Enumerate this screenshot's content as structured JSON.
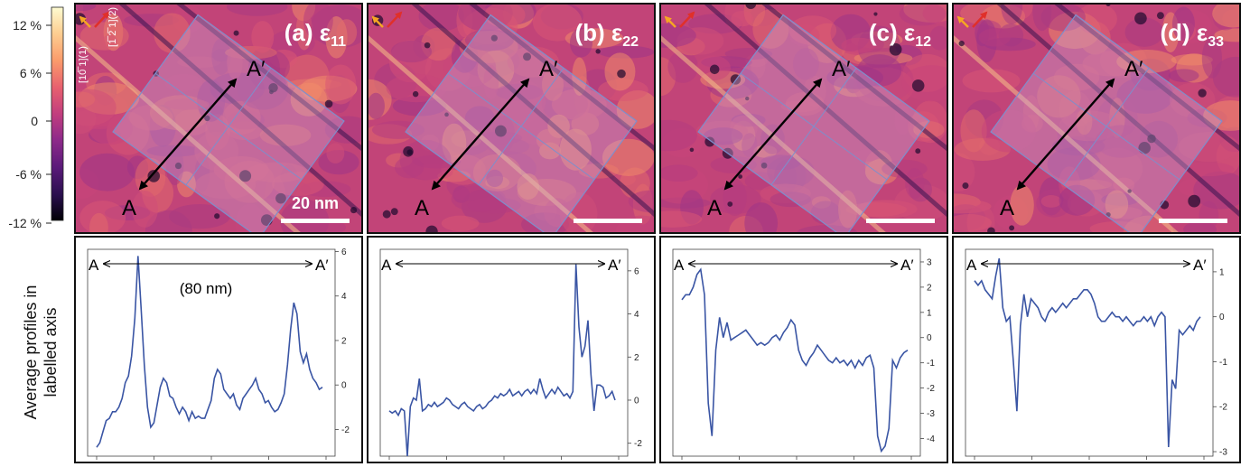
{
  "colorbar": {
    "ticks": [
      "12 %",
      "6 %",
      "0",
      "-6 %",
      "-12 %"
    ],
    "colors": [
      "#fdfbd1",
      "#fdcf92",
      "#fb9b6b",
      "#e75f6f",
      "#c23e7e",
      "#8f2a8a",
      "#5b1a7a",
      "#2a0f4e",
      "#000004"
    ]
  },
  "panels": [
    {
      "title_prefix": "(a) ",
      "symbol": "ε",
      "subscript": "11"
    },
    {
      "title_prefix": "(b) ",
      "symbol": "ε",
      "subscript": "22"
    },
    {
      "title_prefix": "(c) ",
      "symbol": "ε",
      "subscript": "12"
    },
    {
      "title_prefix": "(d) ",
      "symbol": "ε",
      "subscript": "33"
    }
  ],
  "map_labels": {
    "start": "A",
    "end": "A′"
  },
  "scale_bar_label": "20 nm",
  "direction_labels": {
    "d1": "[10̅ 1](1)",
    "d2": "[1̅ 2̅ 1](2)"
  },
  "ylabel_lines": [
    "Average profiles in",
    "labelled axis"
  ],
  "profile_length_label": "(80 nm)",
  "arrow_labels": {
    "start": "A",
    "end": "A′"
  },
  "colors": {
    "line": "#3a55a4",
    "orange_arrow": "#f5a623",
    "red_arrow": "#e0302a"
  },
  "chart_data": [
    {
      "type": "line",
      "ylim": [
        -3.2,
        6.1
      ],
      "yticks": [
        -2,
        0,
        2,
        4,
        6
      ],
      "series": [
        {
          "values": [
            -2.8,
            -2.6,
            -2.1,
            -1.6,
            -1.5,
            -1.2,
            -1.2,
            -1.0,
            -0.6,
            0.1,
            0.4,
            1.3,
            3.0,
            5.8,
            3.4,
            0.9,
            -1.0,
            -1.9,
            -1.7,
            -0.9,
            -0.1,
            0.3,
            0.1,
            -0.5,
            -0.6,
            -1.0,
            -1.3,
            -1.0,
            -1.2,
            -1.6,
            -1.2,
            -1.5,
            -1.4,
            -1.5,
            -1.5,
            -1.1,
            -0.7,
            0.3,
            0.7,
            0.5,
            -0.2,
            -0.4,
            -0.6,
            -0.4,
            -0.9,
            -1.1,
            -0.6,
            -0.4,
            -0.2,
            0.0,
            0.3,
            -0.2,
            -0.4,
            -0.8,
            -0.7,
            -1.0,
            -1.2,
            -1.1,
            -0.8,
            -0.4,
            0.9,
            2.5,
            3.7,
            3.2,
            1.5,
            1.0,
            1.4,
            0.7,
            0.3,
            0.1,
            -0.2,
            -0.1
          ]
        }
      ]
    },
    {
      "type": "line",
      "ylim": [
        -2.6,
        7.0
      ],
      "yticks": [
        -2,
        0,
        2,
        4,
        6
      ],
      "series": [
        {
          "values": [
            -0.5,
            -0.6,
            -0.5,
            -0.7,
            -0.4,
            -0.5,
            -2.6,
            -0.3,
            0.1,
            0.0,
            1.0,
            -0.5,
            -0.4,
            -0.2,
            -0.3,
            -0.1,
            -0.3,
            -0.2,
            -0.1,
            0.1,
            0.0,
            -0.2,
            -0.3,
            -0.4,
            -0.2,
            -0.1,
            -0.3,
            -0.4,
            -0.5,
            -0.3,
            -0.2,
            -0.4,
            -0.3,
            -0.1,
            0.0,
            0.2,
            0.1,
            0.3,
            0.2,
            0.3,
            0.5,
            0.2,
            0.3,
            0.4,
            0.2,
            0.4,
            0.5,
            0.3,
            0.5,
            0.3,
            1.0,
            0.5,
            0.1,
            0.3,
            0.5,
            0.3,
            0.6,
            0.4,
            0.2,
            0.3,
            0.1,
            0.4,
            6.3,
            3.4,
            2.0,
            2.5,
            3.7,
            1.2,
            -0.5,
            0.7,
            0.7,
            0.6,
            0.1,
            0.2,
            0.4,
            0.0
          ]
        }
      ]
    },
    {
      "type": "line",
      "ylim": [
        -4.7,
        3.5
      ],
      "yticks": [
        -4,
        -3,
        -2,
        -1,
        0,
        1,
        2,
        3
      ],
      "series": [
        {
          "values": [
            1.5,
            1.7,
            1.7,
            2.0,
            2.5,
            2.7,
            1.7,
            -2.6,
            -3.9,
            -0.5,
            0.8,
            0.0,
            0.6,
            -0.1,
            0.0,
            0.1,
            0.2,
            0.3,
            0.1,
            -0.1,
            -0.3,
            -0.2,
            -0.3,
            -0.2,
            0.0,
            0.1,
            -0.1,
            0.2,
            0.4,
            0.7,
            0.5,
            -0.5,
            -0.9,
            -1.1,
            -0.8,
            -0.6,
            -0.3,
            -0.5,
            -0.7,
            -0.9,
            -1.0,
            -0.8,
            -1.0,
            -0.9,
            -1.1,
            -0.9,
            -1.2,
            -0.9,
            -1.1,
            -0.8,
            -0.7,
            -1.2,
            -3.9,
            -4.5,
            -4.3,
            -3.6,
            -0.9,
            -1.2,
            -0.8,
            -0.6,
            -0.5
          ]
        }
      ]
    },
    {
      "type": "line",
      "ylim": [
        -3.1,
        1.5
      ],
      "yticks": [
        -3,
        -2,
        -1,
        0,
        1
      ],
      "series": [
        {
          "values": [
            0.8,
            0.7,
            0.8,
            0.6,
            0.5,
            0.4,
            0.9,
            1.3,
            0.2,
            -0.1,
            0.0,
            -1.0,
            -2.1,
            -0.2,
            0.5,
            0.0,
            0.4,
            0.3,
            0.2,
            0.0,
            -0.1,
            0.1,
            0.2,
            0.1,
            0.2,
            0.3,
            0.2,
            0.3,
            0.4,
            0.4,
            0.5,
            0.6,
            0.6,
            0.5,
            0.3,
            0.0,
            -0.1,
            -0.1,
            0.0,
            0.1,
            0.0,
            0.0,
            -0.1,
            0.0,
            -0.1,
            -0.2,
            -0.1,
            -0.1,
            0.0,
            -0.1,
            0.0,
            -0.2,
            0.0,
            0.1,
            0.0,
            -2.9,
            -1.4,
            -1.6,
            -0.3,
            -0.4,
            -0.3,
            -0.2,
            -0.3,
            -0.1,
            0.0
          ]
        }
      ]
    }
  ]
}
